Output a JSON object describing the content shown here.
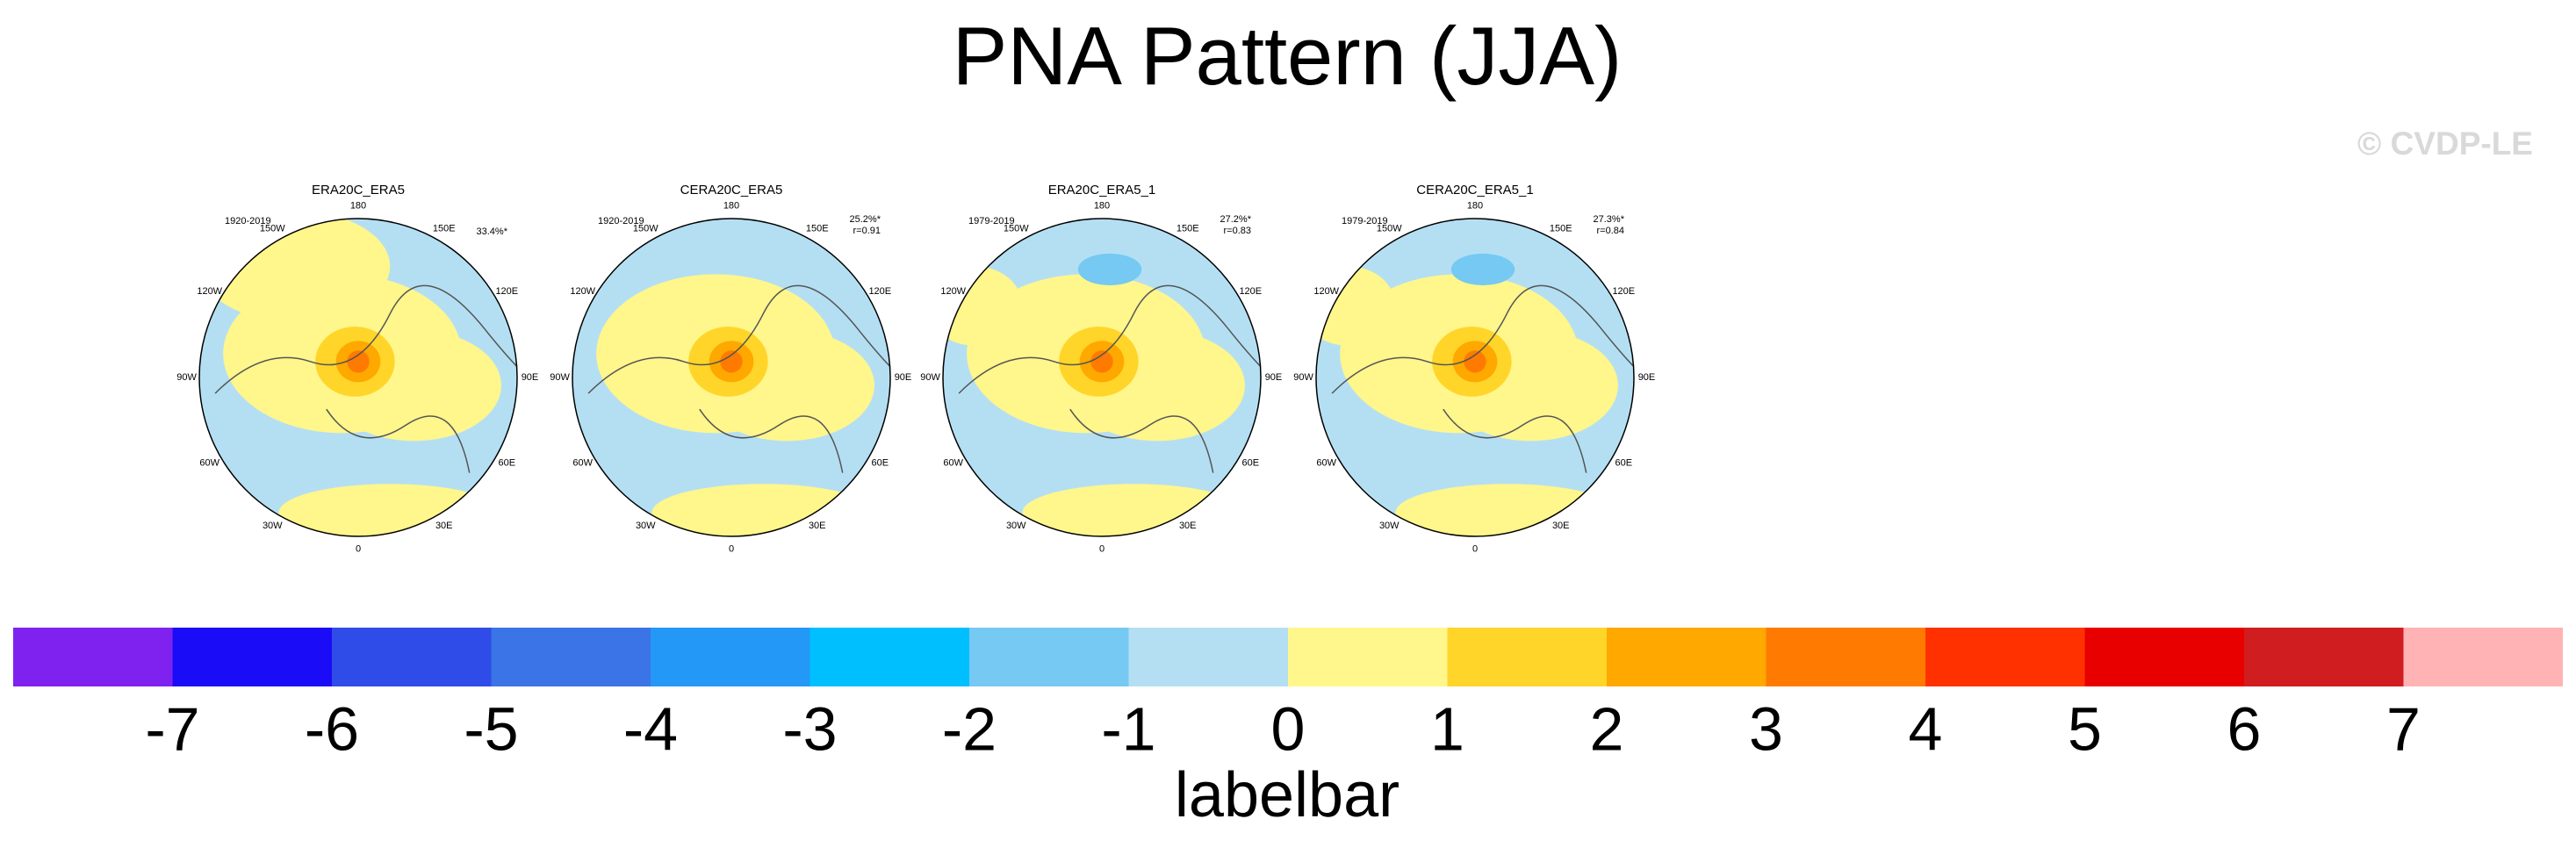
{
  "title": "PNA Pattern (JJA)",
  "watermark": "© CVDP-LE",
  "longitude_labels": [
    "180",
    "150E",
    "120E",
    "90E",
    "60E",
    "30E",
    "0",
    "30W",
    "60W",
    "90W",
    "120W",
    "150W"
  ],
  "panels": [
    {
      "title": "ERA20C_ERA5",
      "period": "1920-2019",
      "stats": [
        "33.4%*"
      ]
    },
    {
      "title": "CERA20C_ERA5",
      "period": "1920-2019",
      "stats": [
        "25.2%*",
        "r=0.91"
      ]
    },
    {
      "title": "ERA20C_ERA5_1",
      "period": "1979-2019",
      "stats": [
        "27.2%*",
        "r=0.83"
      ]
    },
    {
      "title": "CERA20C_ERA5_1",
      "period": "1979-2019",
      "stats": [
        "27.3%*",
        "r=0.84"
      ]
    }
  ],
  "labelbar": {
    "label": "labelbar",
    "ticks": [
      -7,
      -6,
      -5,
      -4,
      -3,
      -2,
      -1,
      0,
      1,
      2,
      3,
      4,
      5,
      6,
      7
    ],
    "colors": [
      "#7f22f0",
      "#1a0cf6",
      "#2f4be8",
      "#3a74e6",
      "#2398f7",
      "#00bfff",
      "#75c9f2",
      "#b4dff3",
      "#fff68c",
      "#ffd52a",
      "#ffa800",
      "#ff7a00",
      "#ff3100",
      "#e80000",
      "#d01d20",
      "#ffb3b5"
    ]
  }
}
